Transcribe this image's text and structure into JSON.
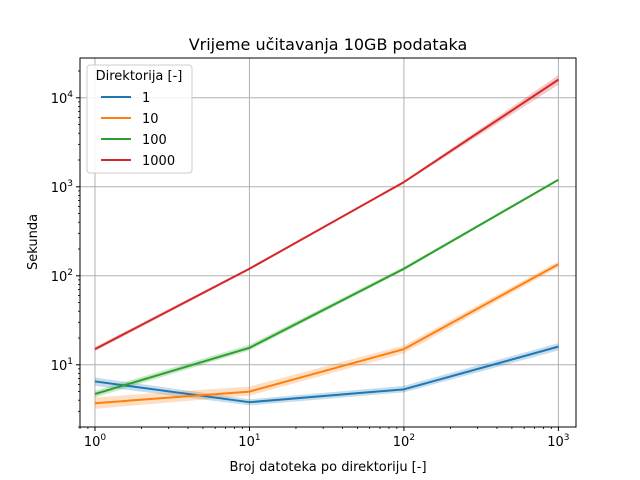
{
  "chart_data": {
    "type": "line",
    "title": "Vrijeme učitavanja 10GB podataka",
    "xlabel": "Broj datoteka po direktoriju [-]",
    "ylabel": "Sekunda",
    "xscale": "log",
    "yscale": "log",
    "xlim": [
      0.8,
      1300
    ],
    "ylim": [
      2,
      28000
    ],
    "grid": true,
    "x": [
      1,
      10,
      100,
      1000
    ],
    "x_ticks": [
      {
        "value": 1,
        "base": "10",
        "exp": "0"
      },
      {
        "value": 10,
        "base": "10",
        "exp": "1"
      },
      {
        "value": 100,
        "base": "10",
        "exp": "2"
      },
      {
        "value": 1000,
        "base": "10",
        "exp": "3"
      }
    ],
    "y_ticks": [
      {
        "value": 10,
        "base": "10",
        "exp": "1"
      },
      {
        "value": 100,
        "base": "10",
        "exp": "2"
      },
      {
        "value": 1000,
        "base": "10",
        "exp": "3"
      },
      {
        "value": 10000,
        "base": "10",
        "exp": "4"
      }
    ],
    "legend": {
      "title": "Direktorija [-]",
      "position": "top-left"
    },
    "series": [
      {
        "name": "1",
        "color": "#1f77b4",
        "values": [
          6.5,
          3.8,
          5.3,
          16
        ],
        "lower": [
          5.8,
          3.5,
          4.9,
          14.5
        ],
        "upper": [
          7.2,
          4.1,
          5.8,
          17.5
        ]
      },
      {
        "name": "10",
        "color": "#ff7f0e",
        "values": [
          3.7,
          5.0,
          15,
          135
        ],
        "lower": [
          3.2,
          4.5,
          13.5,
          125
        ],
        "upper": [
          4.3,
          5.7,
          16.5,
          145
        ]
      },
      {
        "name": "100",
        "color": "#2ca02c",
        "values": [
          4.7,
          15.5,
          120,
          1200
        ],
        "lower": [
          4.3,
          14.5,
          115,
          1170
        ],
        "upper": [
          5.1,
          16.8,
          126,
          1230
        ]
      },
      {
        "name": "1000",
        "color": "#d62728",
        "values": [
          15,
          120,
          1130,
          16000
        ],
        "lower": [
          14.2,
          116,
          1100,
          14000
        ],
        "upper": [
          15.8,
          124,
          1160,
          18000
        ]
      }
    ]
  }
}
